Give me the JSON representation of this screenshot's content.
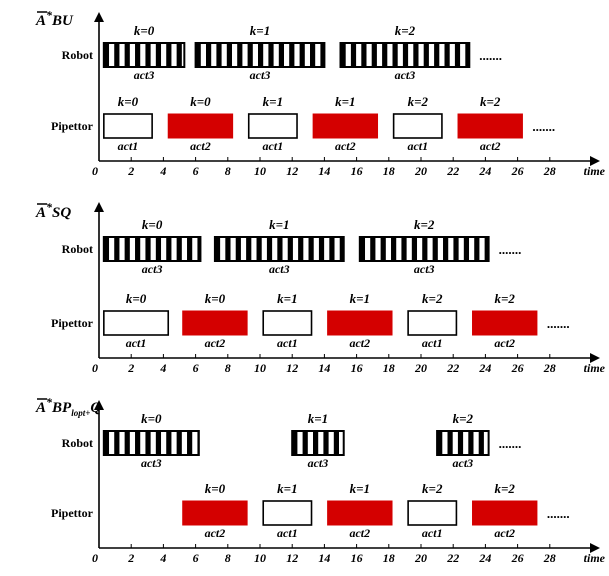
{
  "time_label": "time",
  "x_ticks": [
    0,
    2,
    4,
    6,
    8,
    10,
    12,
    14,
    16,
    18,
    20,
    22,
    24,
    26,
    28
  ],
  "continuation": ".......",
  "colors": {
    "act1_fill": "#ffffff",
    "act2_fill": "#d40000",
    "stripe_dark": "#000000",
    "stripe_light": "#ffffff",
    "axis": "#000000"
  },
  "panels": [
    {
      "title_main": "A",
      "title_sup": "*",
      "title_rest": "BU",
      "title_sub": "",
      "title_tail": "",
      "robot_label": "Robot",
      "pipettor_label": "Pipettor",
      "robot_tasks": [
        {
          "k": "k=0",
          "act": "act3",
          "start": 0.3,
          "end": 5.3
        },
        {
          "k": "k=1",
          "act": "act3",
          "start": 6.0,
          "end": 14.0
        },
        {
          "k": "k=2",
          "act": "act3",
          "start": 15.0,
          "end": 23.0
        }
      ],
      "pipettor_tasks": [
        {
          "k": "k=0",
          "act": "act1",
          "type": "act1",
          "start": 0.3,
          "end": 3.3
        },
        {
          "k": "k=0",
          "act": "act2",
          "type": "act2",
          "start": 4.3,
          "end": 8.3
        },
        {
          "k": "k=1",
          "act": "act1",
          "type": "act1",
          "start": 9.3,
          "end": 12.3
        },
        {
          "k": "k=1",
          "act": "act2",
          "type": "act2",
          "start": 13.3,
          "end": 17.3
        },
        {
          "k": "k=2",
          "act": "act1",
          "type": "act1",
          "start": 18.3,
          "end": 21.3
        },
        {
          "k": "k=2",
          "act": "act2",
          "type": "act2",
          "start": 22.3,
          "end": 26.3
        }
      ]
    },
    {
      "title_main": "A",
      "title_sup": "*",
      "title_rest": "SQ",
      "title_sub": "",
      "title_tail": "",
      "robot_label": "Robot",
      "pipettor_label": "Pipettor",
      "robot_tasks": [
        {
          "k": "k=0",
          "act": "act3",
          "start": 0.3,
          "end": 6.3
        },
        {
          "k": "k=1",
          "act": "act3",
          "start": 7.2,
          "end": 15.2
        },
        {
          "k": "k=2",
          "act": "act3",
          "start": 16.2,
          "end": 24.2
        }
      ],
      "pipettor_tasks": [
        {
          "k": "k=0",
          "act": "act1",
          "type": "act1",
          "start": 0.3,
          "end": 4.3
        },
        {
          "k": "k=0",
          "act": "act2",
          "type": "act2",
          "start": 5.2,
          "end": 9.2
        },
        {
          "k": "k=1",
          "act": "act1",
          "type": "act1",
          "start": 10.2,
          "end": 13.2
        },
        {
          "k": "k=1",
          "act": "act2",
          "type": "act2",
          "start": 14.2,
          "end": 18.2
        },
        {
          "k": "k=2",
          "act": "act1",
          "type": "act1",
          "start": 19.2,
          "end": 22.2
        },
        {
          "k": "k=2",
          "act": "act2",
          "type": "act2",
          "start": 23.2,
          "end": 27.2
        }
      ]
    },
    {
      "title_main": "A",
      "title_sup": "*",
      "title_rest": "BP",
      "title_sub": "lopt+",
      "title_tail": "Q",
      "robot_label": "Robot",
      "pipettor_label": "Pipettor",
      "robot_tasks": [
        {
          "k": "k=0",
          "act": "act3",
          "start": 0.3,
          "end": 6.2
        },
        {
          "k": "k=1",
          "act": "act3",
          "start": 12.0,
          "end": 15.2
        },
        {
          "k": "k=2",
          "act": "act3",
          "start": 21.0,
          "end": 24.2
        }
      ],
      "pipettor_tasks": [
        {
          "k": "k=0",
          "act": "act2",
          "type": "act2",
          "start": 5.2,
          "end": 9.2
        },
        {
          "k": "k=1",
          "act": "act1",
          "type": "act1",
          "start": 10.2,
          "end": 13.2
        },
        {
          "k": "k=1",
          "act": "act2",
          "type": "act2",
          "start": 14.2,
          "end": 18.2
        },
        {
          "k": "k=2",
          "act": "act1",
          "type": "act1",
          "start": 19.2,
          "end": 22.2
        },
        {
          "k": "k=2",
          "act": "act2",
          "type": "act2",
          "start": 23.2,
          "end": 27.2
        }
      ]
    }
  ]
}
